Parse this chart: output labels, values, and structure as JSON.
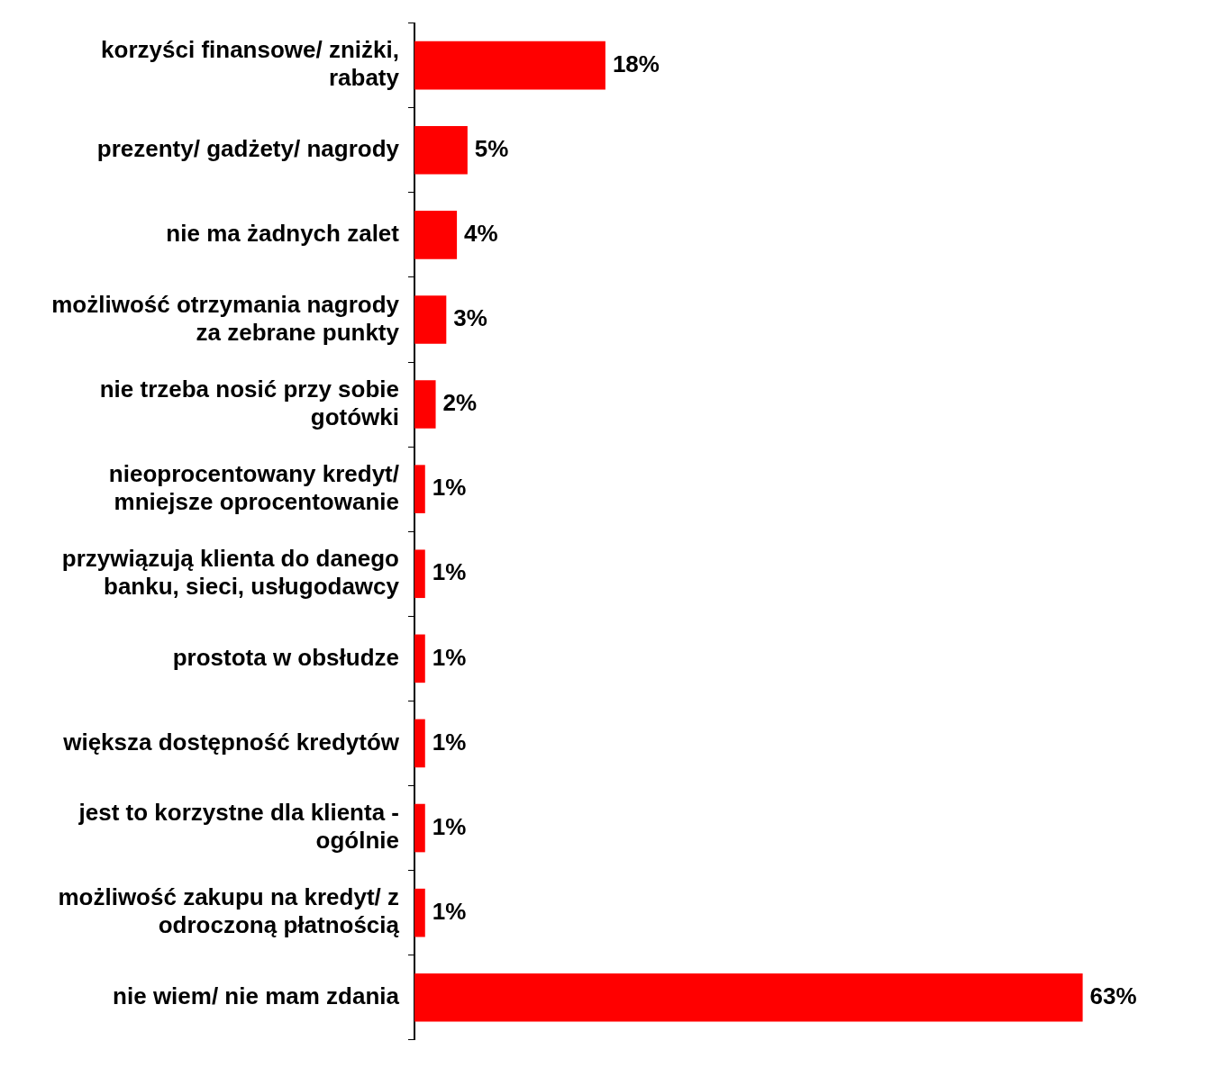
{
  "chart_data": {
    "type": "bar",
    "orientation": "horizontal",
    "categories": [
      "korzyści finansowe/ zniżki, rabaty",
      "prezenty/ gadżety/ nagrody",
      "nie ma żadnych zalet",
      "możliwość otrzymania nagrody za zebrane punkty",
      "nie trzeba nosić przy sobie gotówki",
      "nieoprocentowany kredyt/ mniejsze oprocentowanie",
      "przywiązują klienta do danego banku, sieci, usługodawcy",
      "prostota w obsłudze",
      "większa dostępność kredytów",
      "jest to korzystne dla klienta - ogólnie",
      "możliwość zakupu na kredyt/ z odroczoną płatnością",
      "nie wiem/ nie mam zdania"
    ],
    "values": [
      18,
      5,
      4,
      3,
      2,
      1,
      1,
      1,
      1,
      1,
      1,
      63
    ],
    "value_labels": [
      "18%",
      "5%",
      "4%",
      "3%",
      "2%",
      "1%",
      "1%",
      "1%",
      "1%",
      "1%",
      "1%",
      "63%"
    ],
    "color": "#ff0000",
    "tick_labels": "y"
  }
}
